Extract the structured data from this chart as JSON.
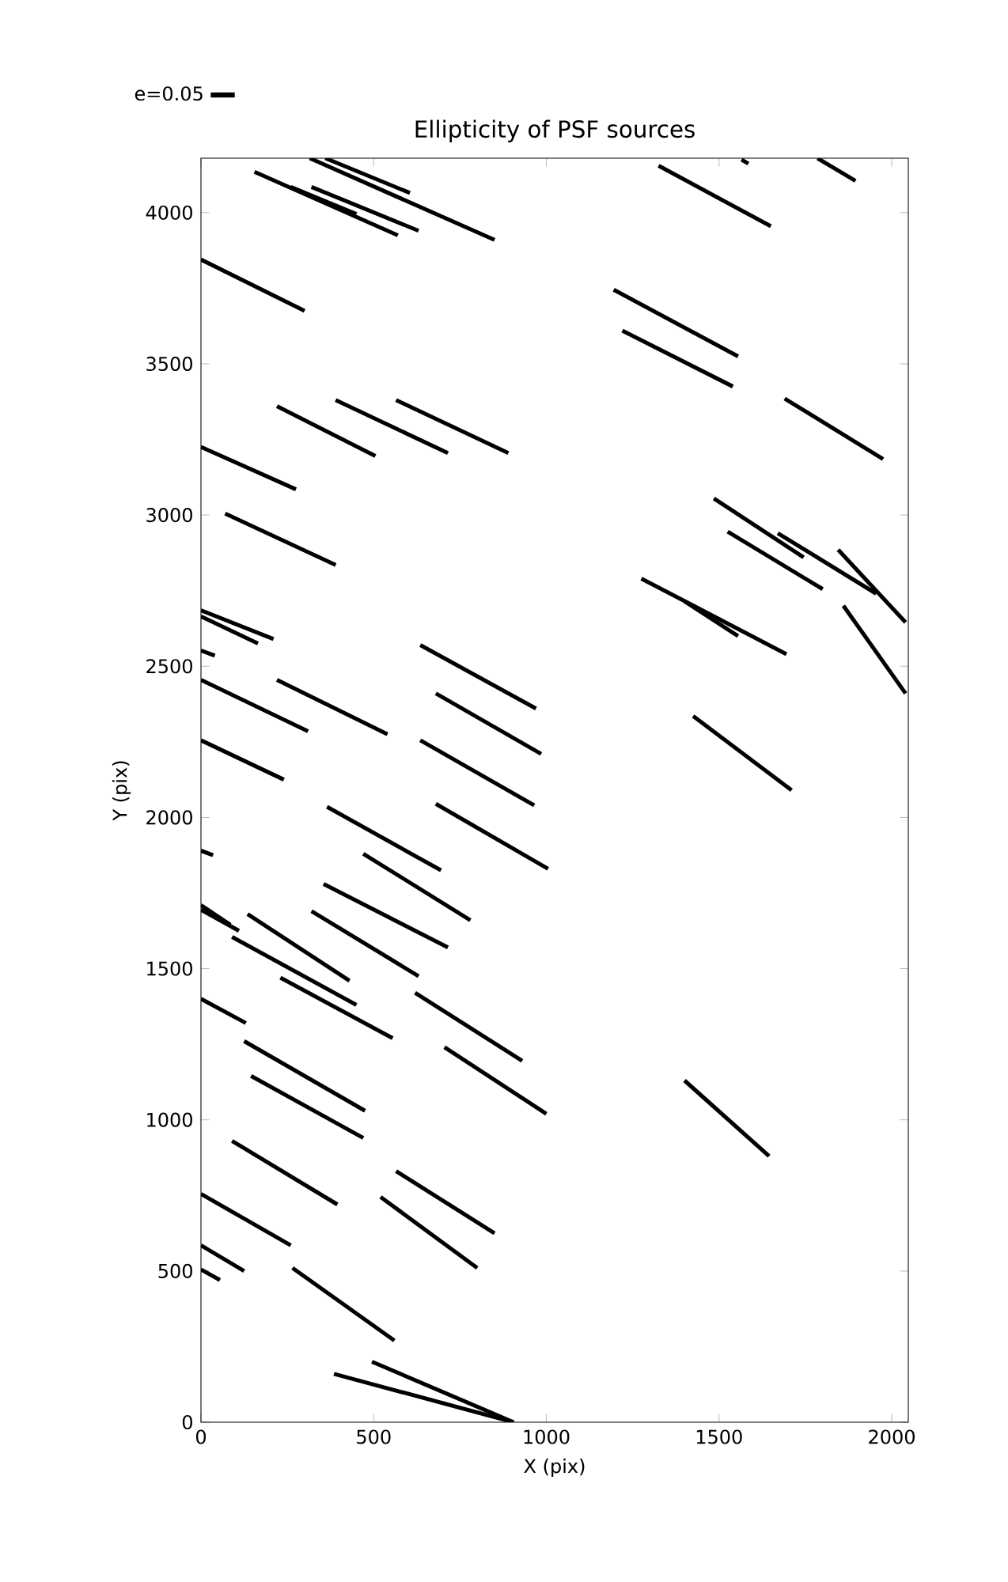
{
  "chart_data": {
    "type": "line",
    "title": "Ellipticity of PSF sources",
    "xlabel": "X (pix)",
    "ylabel": "Y (pix)",
    "xlim": [
      0,
      2048
    ],
    "ylim": [
      0,
      4180
    ],
    "xticks": [
      0,
      500,
      1000,
      1500,
      2000
    ],
    "yticks": [
      0,
      500,
      1000,
      1500,
      2000,
      2500,
      3000,
      3500,
      4000
    ],
    "legend": "top left",
    "marker": "none",
    "series": [
      {
        "name": "e=0.05",
        "color": "#000000",
        "x": [
          155,
          570
        ],
        "values": [
          4135,
          3925
        ]
      },
      {
        "color": "#000000",
        "x": [
          260,
          450
        ],
        "values": [
          4085,
          3995
        ]
      },
      {
        "color": "#000000",
        "x": [
          320,
          630
        ],
        "values": [
          4085,
          3940
        ]
      },
      {
        "color": "#000000",
        "x": [
          315,
          850
        ],
        "values": [
          4180,
          3910
        ]
      },
      {
        "color": "#000000",
        "x": [
          360,
          605
        ],
        "values": [
          4180,
          4065
        ]
      },
      {
        "color": "#000000",
        "x": [
          1325,
          1650
        ],
        "values": [
          4155,
          3955
        ]
      },
      {
        "color": "#000000",
        "x": [
          1565,
          1585
        ],
        "values": [
          4175,
          4162
        ]
      },
      {
        "color": "#000000",
        "x": [
          1785,
          1895
        ],
        "values": [
          4180,
          4105
        ]
      },
      {
        "color": "#000000",
        "x": [
          0,
          300
        ],
        "values": [
          3845,
          3675
        ]
      },
      {
        "color": "#000000",
        "x": [
          1195,
          1555
        ],
        "values": [
          3745,
          3525
        ]
      },
      {
        "color": "#000000",
        "x": [
          1220,
          1540
        ],
        "values": [
          3610,
          3425
        ]
      },
      {
        "color": "#000000",
        "x": [
          220,
          505
        ],
        "values": [
          3360,
          3195
        ]
      },
      {
        "color": "#000000",
        "x": [
          390,
          715
        ],
        "values": [
          3380,
          3205
        ]
      },
      {
        "color": "#000000",
        "x": [
          565,
          890
        ],
        "values": [
          3380,
          3205
        ]
      },
      {
        "color": "#000000",
        "x": [
          1690,
          1975
        ],
        "values": [
          3385,
          3185
        ]
      },
      {
        "color": "#000000",
        "x": [
          0,
          275
        ],
        "values": [
          3225,
          3085
        ]
      },
      {
        "color": "#000000",
        "x": [
          70,
          390
        ],
        "values": [
          3005,
          2835
        ]
      },
      {
        "color": "#000000",
        "x": [
          1485,
          1745
        ],
        "values": [
          3055,
          2860
        ]
      },
      {
        "color": "#000000",
        "x": [
          1525,
          1800
        ],
        "values": [
          2945,
          2755
        ]
      },
      {
        "color": "#000000",
        "x": [
          1670,
          1955
        ],
        "values": [
          2940,
          2740
        ]
      },
      {
        "color": "#000000",
        "x": [
          1845,
          2040
        ],
        "values": [
          2885,
          2645
        ]
      },
      {
        "color": "#000000",
        "x": [
          1275,
          1695
        ],
        "values": [
          2790,
          2540
        ]
      },
      {
        "color": "#000000",
        "x": [
          1400,
          1555
        ],
        "values": [
          2715,
          2600
        ]
      },
      {
        "color": "#000000",
        "x": [
          1860,
          2040
        ],
        "values": [
          2700,
          2410
        ]
      },
      {
        "color": "#000000",
        "x": [
          0,
          210
        ],
        "values": [
          2685,
          2590
        ]
      },
      {
        "color": "#000000",
        "x": [
          0,
          165
        ],
        "values": [
          2665,
          2575
        ]
      },
      {
        "color": "#000000",
        "x": [
          0,
          40
        ],
        "values": [
          2552,
          2535
        ]
      },
      {
        "color": "#000000",
        "x": [
          635,
          970
        ],
        "values": [
          2570,
          2360
        ]
      },
      {
        "color": "#000000",
        "x": [
          0,
          310
        ],
        "values": [
          2455,
          2285
        ]
      },
      {
        "color": "#000000",
        "x": [
          220,
          540
        ],
        "values": [
          2455,
          2275
        ]
      },
      {
        "color": "#000000",
        "x": [
          680,
          985
        ],
        "values": [
          2410,
          2210
        ]
      },
      {
        "color": "#000000",
        "x": [
          0,
          240
        ],
        "values": [
          2255,
          2125
        ]
      },
      {
        "color": "#000000",
        "x": [
          635,
          965
        ],
        "values": [
          2255,
          2040
        ]
      },
      {
        "color": "#000000",
        "x": [
          1425,
          1710
        ],
        "values": [
          2335,
          2090
        ]
      },
      {
        "color": "#000000",
        "x": [
          365,
          695
        ],
        "values": [
          2035,
          1825
        ]
      },
      {
        "color": "#000000",
        "x": [
          680,
          1005
        ],
        "values": [
          2045,
          1830
        ]
      },
      {
        "color": "#000000",
        "x": [
          0,
          35
        ],
        "values": [
          1890,
          1875
        ]
      },
      {
        "color": "#000000",
        "x": [
          470,
          780
        ],
        "values": [
          1880,
          1660
        ]
      },
      {
        "color": "#000000",
        "x": [
          355,
          715
        ],
        "values": [
          1780,
          1570
        ]
      },
      {
        "color": "#000000",
        "x": [
          0,
          85
        ],
        "values": [
          1710,
          1645
        ]
      },
      {
        "color": "#000000",
        "x": [
          0,
          110
        ],
        "values": [
          1695,
          1625
        ]
      },
      {
        "color": "#000000",
        "x": [
          135,
          430
        ],
        "values": [
          1680,
          1460
        ]
      },
      {
        "color": "#000000",
        "x": [
          90,
          450
        ],
        "values": [
          1605,
          1380
        ]
      },
      {
        "color": "#000000",
        "x": [
          320,
          630
        ],
        "values": [
          1690,
          1475
        ]
      },
      {
        "color": "#000000",
        "x": [
          230,
          555
        ],
        "values": [
          1470,
          1270
        ]
      },
      {
        "color": "#000000",
        "x": [
          0,
          130
        ],
        "values": [
          1400,
          1320
        ]
      },
      {
        "color": "#000000",
        "x": [
          620,
          930
        ],
        "values": [
          1420,
          1195
        ]
      },
      {
        "color": "#000000",
        "x": [
          125,
          475
        ],
        "values": [
          1260,
          1030
        ]
      },
      {
        "color": "#000000",
        "x": [
          705,
          1000
        ],
        "values": [
          1240,
          1020
        ]
      },
      {
        "color": "#000000",
        "x": [
          1400,
          1645
        ],
        "values": [
          1130,
          880
        ]
      },
      {
        "color": "#000000",
        "x": [
          145,
          470
        ],
        "values": [
          1145,
          940
        ]
      },
      {
        "color": "#000000",
        "x": [
          90,
          395
        ],
        "values": [
          930,
          720
        ]
      },
      {
        "color": "#000000",
        "x": [
          565,
          850
        ],
        "values": [
          830,
          625
        ]
      },
      {
        "color": "#000000",
        "x": [
          520,
          800
        ],
        "values": [
          745,
          510
        ]
      },
      {
        "color": "#000000",
        "x": [
          0,
          260
        ],
        "values": [
          755,
          585
        ]
      },
      {
        "color": "#000000",
        "x": [
          0,
          125
        ],
        "values": [
          585,
          500
        ]
      },
      {
        "color": "#000000",
        "x": [
          0,
          55
        ],
        "values": [
          505,
          470
        ]
      },
      {
        "color": "#000000",
        "x": [
          265,
          560
        ],
        "values": [
          510,
          270
        ]
      },
      {
        "color": "#000000",
        "x": [
          495,
          905
        ],
        "values": [
          200,
          0
        ]
      },
      {
        "color": "#000000",
        "x": [
          385,
          905
        ],
        "values": [
          160,
          0
        ]
      }
    ]
  }
}
